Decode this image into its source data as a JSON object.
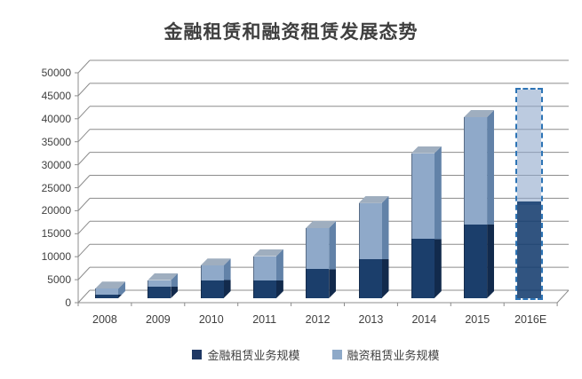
{
  "title": "金融租赁和融资租赁发展态势",
  "colors": {
    "title_text": "#3f3f3f",
    "axis": "#8c8c8c",
    "dark_series_front": "#1b3e6b",
    "dark_series_side": "#122a4c",
    "light_series_front": "#8fa9c9",
    "light_series_side": "#6282a8",
    "top_face": "#9faebf",
    "legend_dark": "#1f3864",
    "legend_light": "#8ea9c8",
    "estimate_border": "#2e75b6",
    "estimate_light_fill": "rgba(143,169,203,0.6)",
    "estimate_dark_fill": "rgba(20,60,110,0.88)"
  },
  "chart_data": {
    "type": "bar",
    "stacked": true,
    "three_d": true,
    "title": "金融租赁和融资租赁发展态势",
    "categories": [
      "2008",
      "2009",
      "2010",
      "2011",
      "2012",
      "2013",
      "2014",
      "2015",
      "2016E"
    ],
    "series": [
      {
        "name": "金融租赁业务规模",
        "values": [
          700,
          2600,
          4000,
          4000,
          6400,
          8600,
          13100,
          16300,
          21300
        ]
      },
      {
        "name": "融资租赁业务规模",
        "values": [
          1400,
          1400,
          3200,
          5300,
          9100,
          12400,
          18900,
          23700,
          24700
        ]
      }
    ],
    "totals": [
      2100,
      4000,
      7200,
      9300,
      15500,
      21000,
      32000,
      40000,
      46000
    ],
    "estimated_category": "2016E",
    "ylim": [
      0,
      50000
    ],
    "ytick_step": 5000,
    "ytick_labels": [
      "0",
      "5000",
      "10000",
      "15000",
      "20000",
      "25000",
      "30000",
      "35000",
      "40000",
      "45000",
      "50000"
    ],
    "xlabel": "",
    "ylabel": "",
    "grid": true,
    "legend_position": "bottom"
  }
}
